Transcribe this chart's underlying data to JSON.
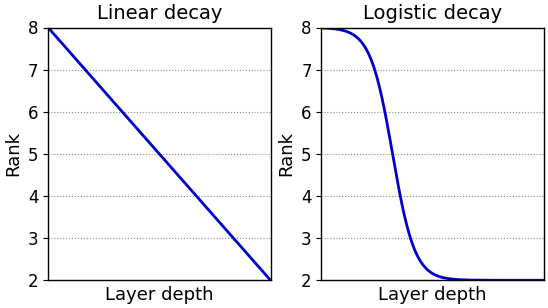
{
  "title_left": "Linear decay",
  "title_right": "Logistic decay",
  "xlabel": "Layer depth",
  "ylabel": "Rank",
  "ylim": [
    2,
    8
  ],
  "xlim": [
    0,
    1
  ],
  "yticks": [
    2,
    3,
    4,
    5,
    6,
    7,
    8
  ],
  "line_color": "#0000cc",
  "line_width": 2.0,
  "grid_color": "#888888",
  "grid_style": "dotted",
  "rank_min": 2,
  "rank_max": 8,
  "logistic_steepness": 20,
  "logistic_midpoint": 0.32,
  "title_fontsize": 14,
  "label_fontsize": 13,
  "tick_fontsize": 12
}
